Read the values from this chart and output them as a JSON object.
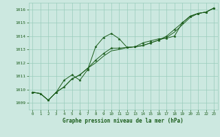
{
  "title": "Graphe pression niveau de la mer (hPa)",
  "background_color": "#cce8e0",
  "grid_color": "#99ccbb",
  "line_color": "#1a5c1a",
  "xlim": [
    -0.5,
    23.5
  ],
  "ylim": [
    1008.5,
    1016.5
  ],
  "yticks": [
    1009,
    1010,
    1011,
    1012,
    1013,
    1014,
    1015,
    1016
  ],
  "xticks": [
    0,
    1,
    2,
    3,
    4,
    5,
    6,
    7,
    8,
    9,
    10,
    11,
    12,
    13,
    14,
    15,
    16,
    17,
    18,
    19,
    20,
    21,
    22,
    23
  ],
  "series1_x": [
    0,
    1,
    2,
    3,
    4,
    5,
    6,
    7,
    8,
    9,
    10,
    11,
    12,
    13,
    14,
    15,
    16,
    17,
    18,
    19,
    20,
    21,
    22,
    23
  ],
  "series1_y": [
    1009.8,
    1009.7,
    1009.2,
    1009.8,
    1010.7,
    1011.1,
    1010.7,
    1011.5,
    1013.2,
    1013.9,
    1014.2,
    1013.8,
    1013.15,
    1013.2,
    1013.5,
    1013.65,
    1013.8,
    1013.85,
    1014.0,
    1015.0,
    1015.5,
    1015.7,
    1015.8,
    1016.1
  ],
  "series2_x": [
    0,
    1,
    2,
    3,
    4,
    5,
    6,
    7,
    8,
    9,
    10,
    11,
    12,
    13,
    14,
    15,
    16,
    17,
    18,
    19,
    20,
    21,
    22,
    23
  ],
  "series2_y": [
    1009.8,
    1009.7,
    1009.2,
    1009.8,
    1010.2,
    1010.8,
    1011.1,
    1011.6,
    1012.2,
    1012.7,
    1013.1,
    1013.1,
    1013.15,
    1013.2,
    1013.3,
    1013.5,
    1013.7,
    1014.0,
    1014.5,
    1015.0,
    1015.5,
    1015.7,
    1015.8,
    1016.1
  ],
  "series3_x": [
    0,
    1,
    2,
    3,
    4,
    5,
    6,
    7,
    8,
    9,
    10,
    11,
    12,
    13,
    14,
    15,
    16,
    17,
    18,
    19,
    20,
    21,
    22,
    23
  ],
  "series3_y": [
    1009.8,
    1009.7,
    1009.2,
    1009.8,
    1010.2,
    1010.8,
    1011.1,
    1011.6,
    1012.0,
    1012.5,
    1012.9,
    1013.0,
    1013.15,
    1013.2,
    1013.3,
    1013.5,
    1013.7,
    1013.9,
    1014.3,
    1014.85,
    1015.4,
    1015.7,
    1015.8,
    1016.1
  ]
}
